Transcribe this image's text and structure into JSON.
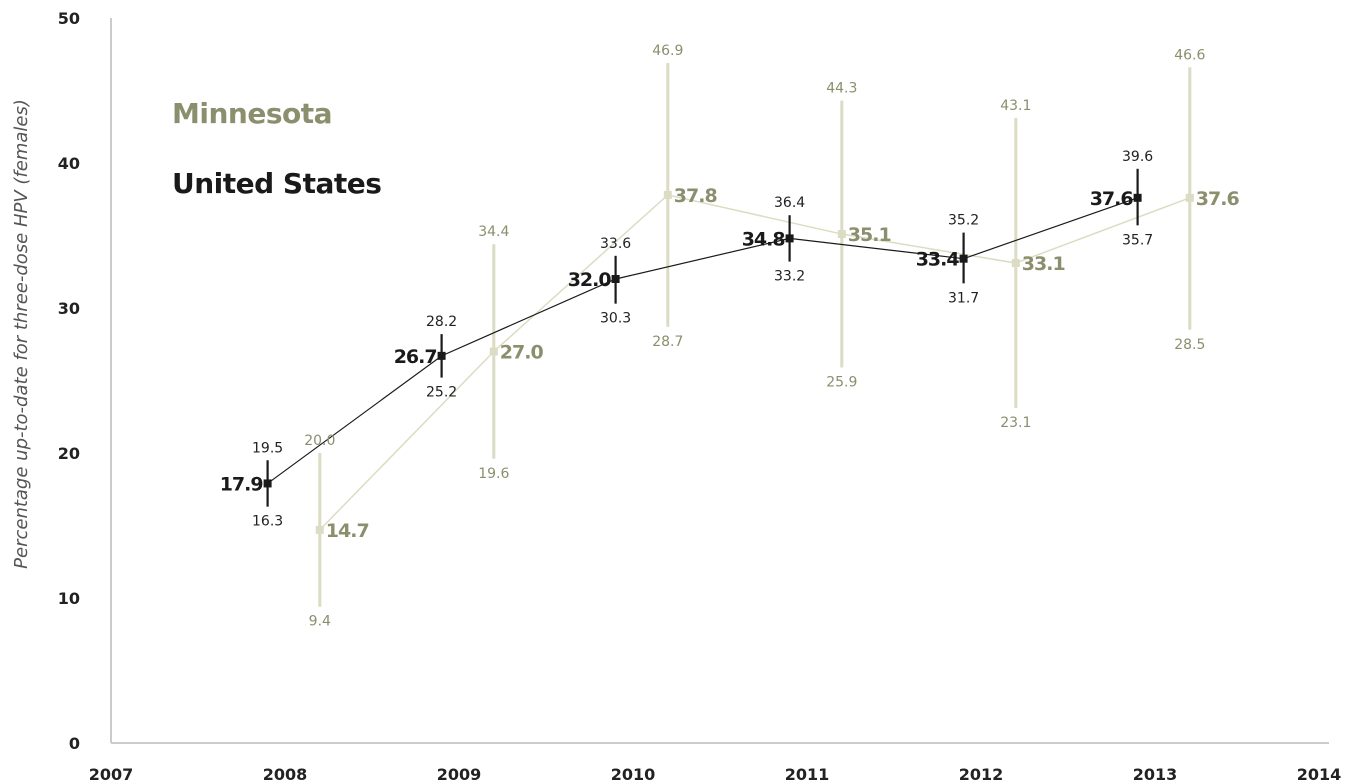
{
  "chart_data": {
    "type": "line",
    "ylabel": "Percentage up-to-date for three-dose HPV (females)",
    "xlabel": "",
    "ylim": [
      0,
      50
    ],
    "xlim": [
      2007,
      2014
    ],
    "x_ticks": [
      "2007",
      "2008",
      "2009",
      "2010",
      "2011",
      "2012",
      "2013",
      "2014"
    ],
    "y_ticks": [
      "0",
      "10",
      "20",
      "30",
      "40",
      "50"
    ],
    "grid": false,
    "legend_position": "top-left",
    "series": [
      {
        "name": "Minnesota",
        "color": "#8b8f6d",
        "line_color": "#dcdcc4",
        "marker_color": "#dcdcc4",
        "points": [
          {
            "x": 2008.2,
            "value": 14.7,
            "value_label": "14.7",
            "ci_low": 9.4,
            "ci_low_label": "9.4",
            "ci_high": 20.0,
            "ci_high_label": "20.0"
          },
          {
            "x": 2009.2,
            "value": 27.0,
            "value_label": "27.0",
            "ci_low": 19.6,
            "ci_low_label": "19.6",
            "ci_high": 34.4,
            "ci_high_label": "34.4"
          },
          {
            "x": 2010.2,
            "value": 37.8,
            "value_label": "37.8",
            "ci_low": 28.7,
            "ci_low_label": "28.7",
            "ci_high": 46.9,
            "ci_high_label": "46.9"
          },
          {
            "x": 2011.2,
            "value": 35.1,
            "value_label": "35.1",
            "ci_low": 25.9,
            "ci_low_label": "25.9",
            "ci_high": 44.3,
            "ci_high_label": "44.3"
          },
          {
            "x": 2012.2,
            "value": 33.1,
            "value_label": "33.1",
            "ci_low": 23.1,
            "ci_low_label": "23.1",
            "ci_high": 43.1,
            "ci_high_label": "43.1"
          },
          {
            "x": 2013.2,
            "value": 37.6,
            "value_label": "37.6",
            "ci_low": 28.5,
            "ci_low_label": "28.5",
            "ci_high": 46.6,
            "ci_high_label": "46.6"
          }
        ]
      },
      {
        "name": "United States",
        "color": "#1a1a1a",
        "line_color": "#1a1a1a",
        "marker_color": "#1a1a1a",
        "points": [
          {
            "x": 2007.9,
            "value": 17.9,
            "value_label": "17.9",
            "ci_low": 16.3,
            "ci_low_label": "16.3",
            "ci_high": 19.5,
            "ci_high_label": "19.5"
          },
          {
            "x": 2008.9,
            "value": 26.7,
            "value_label": "26.7",
            "ci_low": 25.2,
            "ci_low_label": "25.2",
            "ci_high": 28.2,
            "ci_high_label": "28.2"
          },
          {
            "x": 2009.9,
            "value": 32.0,
            "value_label": "32.0",
            "ci_low": 30.3,
            "ci_low_label": "30.3",
            "ci_high": 33.6,
            "ci_high_label": "33.6"
          },
          {
            "x": 2010.9,
            "value": 34.8,
            "value_label": "34.8",
            "ci_low": 33.2,
            "ci_low_label": "33.2",
            "ci_high": 36.4,
            "ci_high_label": "36.4"
          },
          {
            "x": 2011.9,
            "value": 33.4,
            "value_label": "33.4",
            "ci_low": 31.7,
            "ci_low_label": "31.7",
            "ci_high": 35.2,
            "ci_high_label": "35.2"
          },
          {
            "x": 2012.9,
            "value": 37.6,
            "value_label": "37.6",
            "ci_low": 35.7,
            "ci_low_label": "35.7",
            "ci_high": 39.6,
            "ci_high_label": "39.6"
          }
        ]
      }
    ]
  },
  "colors": {
    "axis": "#cccccc",
    "minnesota_text": "#8b8f6d",
    "minnesota_line": "#dcdcc4",
    "us": "#1a1a1a"
  }
}
